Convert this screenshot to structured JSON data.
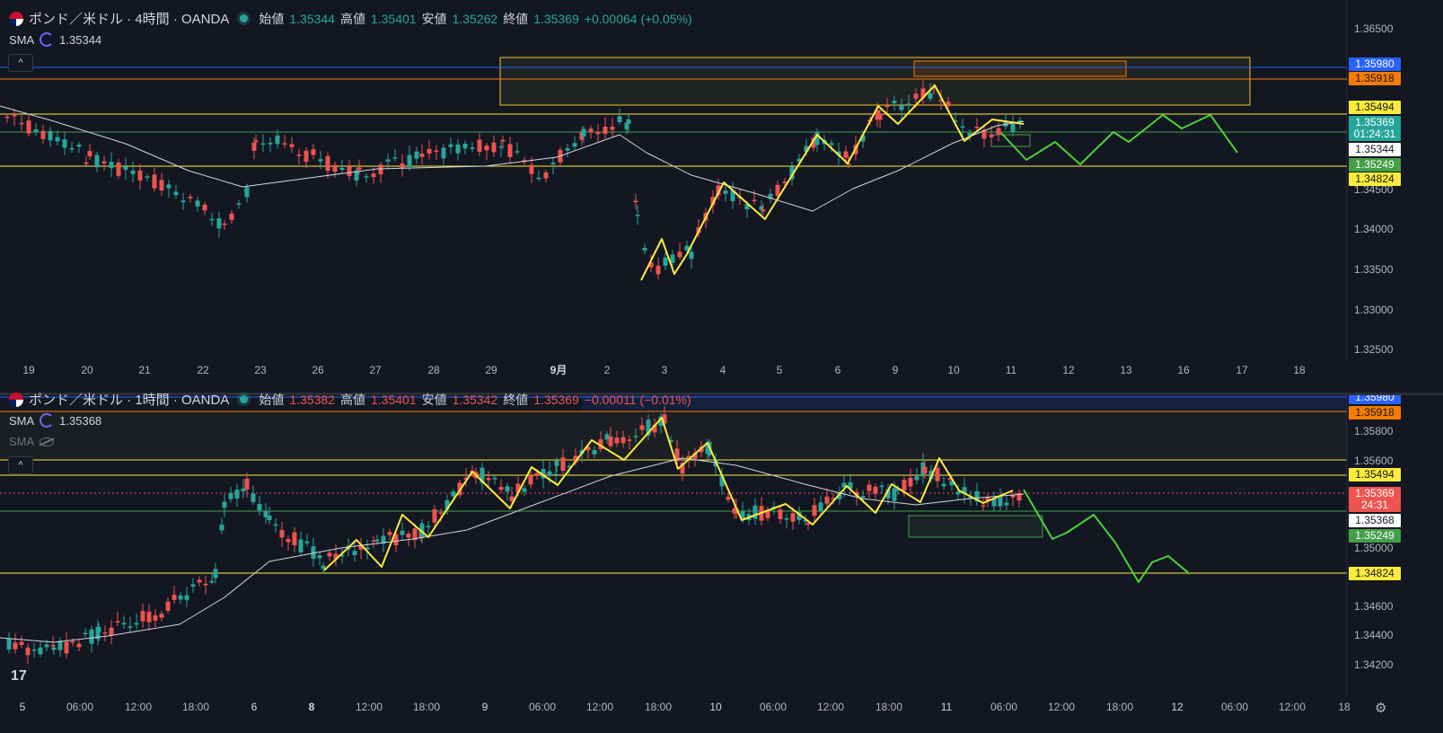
{
  "top": {
    "title": "ポンド／米ドル · 4時間 · OANDA",
    "ohlc": {
      "o_label": "始値",
      "o": "1.35344",
      "h_label": "高値",
      "h": "1.35401",
      "l_label": "安値",
      "l": "1.35262",
      "c_label": "終値",
      "c": "1.35369",
      "change": "+0.00064 (+0.05%)"
    },
    "sma_label": "SMA",
    "sma_value": "1.35344",
    "collapse": "^",
    "price_axis": [
      "1.36500",
      "1.34500",
      "1.34000",
      "1.33500",
      "1.33000",
      "1.32500"
    ],
    "price_tags": [
      {
        "text": "1.35980",
        "bg": "#2962ff",
        "fg": "#ffffff"
      },
      {
        "text": "1.35918",
        "bg": "#f57c00",
        "fg": "#131722"
      },
      {
        "text": "1.35494",
        "bg": "#ffeb3b",
        "fg": "#131722"
      },
      {
        "text": "1.35369",
        "bg": "#26a69a",
        "fg": "#ffffff"
      },
      {
        "text": "01:24:31",
        "bg": "#26a69a",
        "fg": "#ffffff"
      },
      {
        "text": "1.35344",
        "bg": "#ffffff",
        "fg": "#131722"
      },
      {
        "text": "1.35249",
        "bg": "#43a047",
        "fg": "#ffffff"
      },
      {
        "text": "1.34824",
        "bg": "#ffeb3b",
        "fg": "#131722"
      }
    ],
    "time_axis": [
      "19",
      "20",
      "21",
      "22",
      "23",
      "26",
      "27",
      "28",
      "29",
      "9月",
      "2",
      "3",
      "4",
      "5",
      "6",
      "9",
      "10",
      "11",
      "12",
      "13",
      "16",
      "17",
      "18"
    ]
  },
  "bottom": {
    "title": "ポンド／米ドル · 1時間 · OANDA",
    "ohlc": {
      "o_label": "始値",
      "o": "1.35382",
      "h_label": "高値",
      "h": "1.35401",
      "l_label": "安値",
      "l": "1.35342",
      "c_label": "終値",
      "c": "1.35369",
      "change": "−0.00011 (−0.01%)"
    },
    "sma_label": "SMA",
    "sma_value": "1.35368",
    "sma2_label": "SMA",
    "collapse": "^",
    "price_axis": [
      "1.35800",
      "1.35600",
      "1.35000",
      "1.34600",
      "1.34400",
      "1.34200"
    ],
    "price_tags": [
      {
        "text": "1.35980",
        "bg": "#2962ff",
        "fg": "#ffffff"
      },
      {
        "text": "1.35918",
        "bg": "#f57c00",
        "fg": "#131722"
      },
      {
        "text": "1.35494",
        "bg": "#ffeb3b",
        "fg": "#131722"
      },
      {
        "text": "1.35369",
        "bg": "#ef5350",
        "fg": "#ffffff"
      },
      {
        "text": "24:31",
        "bg": "#ef5350",
        "fg": "#ffffff"
      },
      {
        "text": "1.35368",
        "bg": "#ffffff",
        "fg": "#131722"
      },
      {
        "text": "1.35249",
        "bg": "#43a047",
        "fg": "#ffffff"
      },
      {
        "text": "1.34824",
        "bg": "#ffeb3b",
        "fg": "#131722"
      }
    ],
    "time_axis": [
      "5",
      "06:00",
      "12:00",
      "18:00",
      "6",
      "8",
      "12:00",
      "18:00",
      "9",
      "06:00",
      "12:00",
      "18:00",
      "10",
      "06:00",
      "12:00",
      "18:00",
      "11",
      "06:00",
      "12:00",
      "18:00",
      "12",
      "06:00",
      "12:00",
      "18"
    ]
  },
  "colors": {
    "up": "#26a69a",
    "down": "#ef5350",
    "zigzag": "#ffeb3b",
    "forecast": "#4cd137",
    "sma": "#d1d4dc"
  },
  "logo": "17",
  "settings_icon": "gear-icon"
}
